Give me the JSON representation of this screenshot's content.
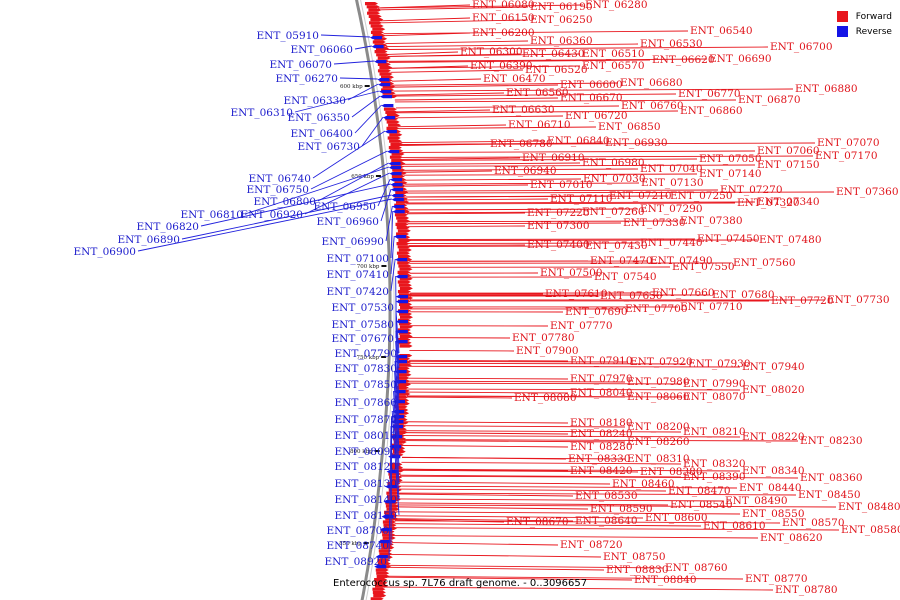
{
  "caption": "Enterococcus sp. 7L76 draft genome. - 0..3096657",
  "legend": [
    {
      "label": "Forward",
      "color": "#e8161d"
    },
    {
      "label": "Reverse",
      "color": "#1414e6"
    }
  ],
  "ticks": [
    "600 kbp",
    "650 kbp",
    "700 kbp",
    "750 kbp",
    "800 kbp",
    "850 kbp"
  ],
  "forward_labels": [
    "ENT_06080",
    "ENT_06190",
    "ENT_06280",
    "ENT_06150",
    "ENT_06250",
    "ENT_06200",
    "ENT_06360",
    "ENT_06540",
    "ENT_06300",
    "ENT_06430",
    "ENT_06510",
    "ENT_06530",
    "ENT_06700",
    "ENT_06390",
    "ENT_06520",
    "ENT_06570",
    "ENT_06620",
    "ENT_06690",
    "ENT_06470",
    "ENT_06600",
    "ENT_06680",
    "ENT_06880",
    "ENT_06560",
    "ENT_06670",
    "ENT_06770",
    "ENT_06870",
    "ENT_06630",
    "ENT_06720",
    "ENT_06760",
    "ENT_06860",
    "ENT_06710",
    "ENT_06850",
    "ENT_06780",
    "ENT_06840",
    "ENT_06930",
    "ENT_07070",
    "ENT_06910",
    "ENT_07060",
    "ENT_07170",
    "ENT_06980",
    "ENT_07050",
    "ENT_06940",
    "ENT_07040",
    "ENT_07150",
    "ENT_07030",
    "ENT_07140",
    "ENT_07010",
    "ENT_07130",
    "ENT_07270",
    "ENT_07360",
    "ENT_07210",
    "ENT_07250",
    "ENT_07340",
    "ENT_07110",
    "ENT_07320",
    "ENT_07290",
    "ENT_07260",
    "ENT_07220",
    "ENT_07330",
    "ENT_07380",
    "ENT_07300",
    "ENT_07450",
    "ENT_07480",
    "ENT_07400",
    "ENT_07430",
    "ENT_07440",
    "ENT_07470",
    "ENT_07490",
    "ENT_07560",
    "ENT_07550",
    "ENT_07500",
    "ENT_07540",
    "ENT_07610",
    "ENT_07650",
    "ENT_07660",
    "ENT_07680",
    "ENT_07730",
    "ENT_07720",
    "ENT_07710",
    "ENT_07700",
    "ENT_07690",
    "ENT_07770",
    "ENT_07780",
    "ENT_07900",
    "ENT_07910",
    "ENT_07920",
    "ENT_07930",
    "ENT_07940",
    "ENT_07970",
    "ENT_07980",
    "ENT_07990",
    "ENT_08020",
    "ENT_08040",
    "ENT_08060",
    "ENT_08070",
    "ENT_08080",
    "ENT_08180",
    "ENT_08200",
    "ENT_08210",
    "ENT_08220",
    "ENT_08230",
    "ENT_08240",
    "ENT_08260",
    "ENT_08280",
    "ENT_08330",
    "ENT_08310",
    "ENT_08320",
    "ENT_08420",
    "ENT_08380",
    "ENT_08340",
    "ENT_08360",
    "ENT_08390",
    "ENT_08460",
    "ENT_08440",
    "ENT_08470",
    "ENT_08450",
    "ENT_08530",
    "ENT_08490",
    "ENT_08480",
    "ENT_08590",
    "ENT_08540",
    "ENT_08550",
    "ENT_08670",
    "ENT_08640",
    "ENT_08600",
    "ENT_08610",
    "ENT_08570",
    "ENT_08580",
    "ENT_08620",
    "ENT_08720",
    "ENT_08750",
    "ENT_08830",
    "ENT_08760",
    "ENT_08770",
    "ENT_08840",
    "ENT_08780"
  ],
  "reverse_labels": [
    "ENT_05910",
    "ENT_06060",
    "ENT_06070",
    "ENT_06270",
    "ENT_06330",
    "ENT_06310",
    "ENT_06350",
    "ENT_06400",
    "ENT_06730",
    "ENT_06740",
    "ENT_06750",
    "ENT_06800",
    "ENT_06810",
    "ENT_06920",
    "ENT_06950",
    "ENT_06820",
    "ENT_06960",
    "ENT_06890",
    "ENT_06900",
    "ENT_06990",
    "ENT_07100",
    "ENT_07410",
    "ENT_07420",
    "ENT_07530",
    "ENT_07580",
    "ENT_07670",
    "ENT_07790",
    "ENT_07830",
    "ENT_07850",
    "ENT_07860",
    "ENT_07870",
    "ENT_08010",
    "ENT_08090",
    "ENT_08120",
    "ENT_08130",
    "ENT_08140",
    "ENT_08150",
    "ENT_08700",
    "ENT_08740",
    "ENT_08920"
  ]
}
